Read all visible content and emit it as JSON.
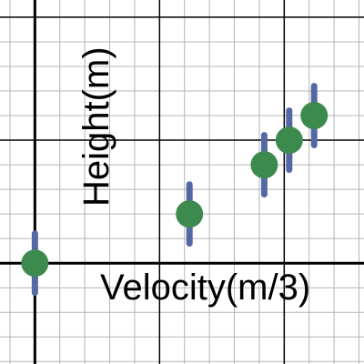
{
  "chart_data": {
    "type": "scatter",
    "xlabel": "Velocity(m/3)",
    "ylabel": "Height(m)",
    "xlim": [
      -0.7,
      6.6
    ],
    "ylim": [
      -2.05,
      5.35
    ],
    "minor_grid_step": 0.5,
    "major_grid_step": 5,
    "grid": true,
    "points": [
      {
        "x": 0.0,
        "y": 0.0,
        "err": 0.6
      },
      {
        "x": 3.1,
        "y": 1.0,
        "err": 0.6
      },
      {
        "x": 4.6,
        "y": 2.0,
        "err": 0.6
      },
      {
        "x": 5.1,
        "y": 2.5,
        "err": 0.6
      },
      {
        "x": 5.6,
        "y": 3.0,
        "err": 0.6
      }
    ]
  },
  "colors": {
    "background": "#ffffff",
    "minor_grid": "#b4b4b4",
    "major_grid": "#000000",
    "marker": "#3c8a4e",
    "error_bar": "#5468a4"
  }
}
